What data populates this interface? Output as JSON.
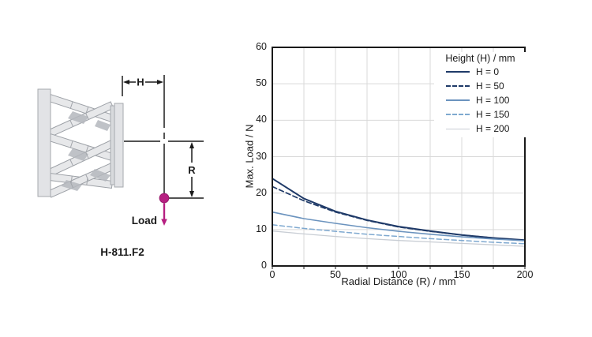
{
  "figure": {
    "caption": "H-811.F2",
    "dim_h_label": "H",
    "dim_r_label": "R",
    "load_label": "Load",
    "load_color": "#b62081"
  },
  "chart_data": {
    "type": "line",
    "title": "",
    "xlabel": "Radial Distance (R) / mm",
    "ylabel": "Max. Load / N",
    "xlim": [
      0,
      200
    ],
    "ylim": [
      0,
      60
    ],
    "xticks": [
      0,
      50,
      100,
      150,
      200
    ],
    "yticks": [
      0,
      10,
      20,
      30,
      40,
      50,
      60
    ],
    "grid": {
      "x_step": 25,
      "y_step": 10,
      "color": "#d9d9d9",
      "on": true
    },
    "legend": {
      "title": "Height (H) / mm",
      "position": "top-right-inside"
    },
    "x": [
      0,
      25,
      50,
      75,
      100,
      125,
      150,
      175,
      200
    ],
    "series": [
      {
        "name": "H = 0",
        "style": "solid",
        "color": "#1f3a68",
        "width": 2.0,
        "values": [
          24.0,
          18.5,
          15.0,
          12.6,
          10.8,
          9.6,
          8.5,
          7.7,
          7.1
        ]
      },
      {
        "name": "H = 50",
        "style": "dashed",
        "color": "#1f3a68",
        "width": 1.7,
        "values": [
          21.8,
          17.9,
          14.8,
          12.5,
          10.7,
          9.5,
          8.5,
          7.7,
          7.0
        ]
      },
      {
        "name": "H = 100",
        "style": "solid",
        "color": "#6b93be",
        "width": 1.6,
        "values": [
          14.8,
          13.0,
          11.7,
          10.5,
          9.5,
          8.7,
          8.0,
          7.4,
          6.9
        ]
      },
      {
        "name": "H = 150",
        "style": "dashed",
        "color": "#7fa9d0",
        "width": 1.5,
        "values": [
          11.3,
          10.3,
          9.5,
          8.7,
          8.1,
          7.5,
          7.0,
          6.5,
          6.1
        ]
      },
      {
        "name": "H = 200",
        "style": "solid",
        "color": "#c8cdd4",
        "width": 1.3,
        "values": [
          9.6,
          8.8,
          8.1,
          7.5,
          7.0,
          6.6,
          6.2,
          5.8,
          5.4
        ]
      }
    ]
  }
}
